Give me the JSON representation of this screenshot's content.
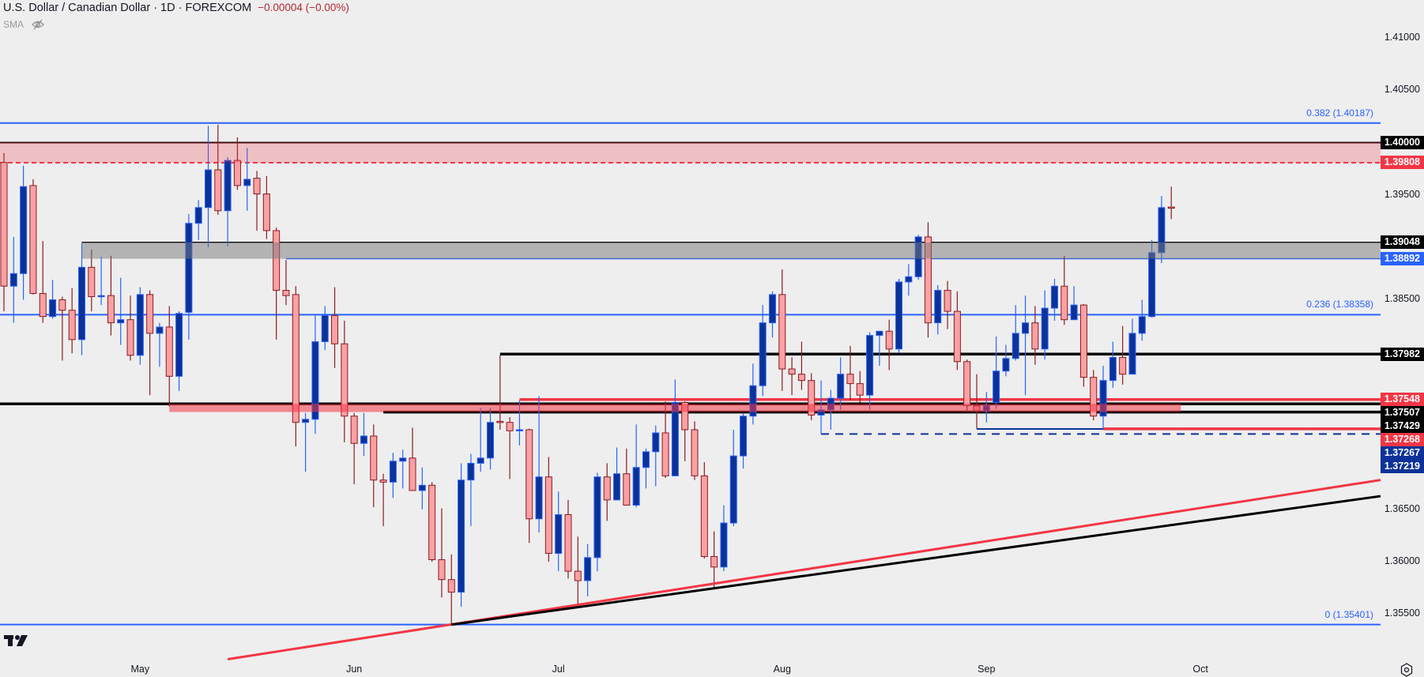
{
  "header": {
    "title": "U.S. Dollar / Canadian Dollar · 1D · FOREXCOM",
    "change": "−0.00004 (−0.00%)",
    "indicator": "SMA",
    "indicator_icon": "eye-slash-icon"
  },
  "footer": {
    "logo_icon": "tradingview-logo-icon",
    "settings_icon": "gear-icon"
  },
  "colors": {
    "background": "#eeeeee",
    "up_body": "#0b3298",
    "up_border": "#2962ff",
    "down_body": "#faa1a4",
    "down_border": "#8b1a21",
    "fib": "#2962ff",
    "red": "#f23645",
    "black": "#000000",
    "navy": "#0c3299",
    "change": "#b22833"
  },
  "chart_data": {
    "type": "candlestick",
    "ylim": [
      1.3507,
      1.4136
    ],
    "grid": false,
    "x_ticks": [
      {
        "label": "May",
        "date": "2025-05-01"
      },
      {
        "label": "Jun",
        "date": "2025-06-02"
      },
      {
        "label": "Jul",
        "date": "2025-07-01"
      },
      {
        "label": "Aug",
        "date": "2025-08-01"
      },
      {
        "label": "Sep",
        "date": "2025-09-01"
      },
      {
        "label": "Oct",
        "date": "2025-10-01"
      }
    ],
    "y_ticks": [
      "1.41000",
      "1.40500",
      "1.40000",
      "1.39500",
      "1.39000",
      "1.38500",
      "1.38000",
      "1.37500",
      "1.37000",
      "1.36500",
      "1.36000",
      "1.35500"
    ],
    "ohlc_columns": [
      "date",
      "open",
      "high",
      "low",
      "close"
    ],
    "ohlc": [
      [
        "2025-04-11",
        1.3981,
        1.399,
        1.3839,
        1.3863
      ],
      [
        "2025-04-14",
        1.3863,
        1.391,
        1.3828,
        1.3875
      ],
      [
        "2025-04-15",
        1.3875,
        1.3978,
        1.385,
        1.3958
      ],
      [
        "2025-04-16",
        1.3959,
        1.3965,
        1.3855,
        1.3856
      ],
      [
        "2025-04-17",
        1.3856,
        1.3906,
        1.3828,
        1.3834
      ],
      [
        "2025-04-18",
        1.3834,
        1.3869,
        1.3832,
        1.385
      ],
      [
        "2025-04-21",
        1.385,
        1.3853,
        1.3792,
        1.384
      ],
      [
        "2025-04-22",
        1.384,
        1.3861,
        1.3799,
        1.3812
      ],
      [
        "2025-04-23",
        1.3812,
        1.3904,
        1.3797,
        1.3881
      ],
      [
        "2025-04-24",
        1.3881,
        1.3898,
        1.3839,
        1.3853
      ],
      [
        "2025-04-25",
        1.3854,
        1.3891,
        1.3845,
        1.3854
      ],
      [
        "2025-04-28",
        1.3854,
        1.3892,
        1.3816,
        1.3828
      ],
      [
        "2025-04-29",
        1.3828,
        1.3871,
        1.3807,
        1.3831
      ],
      [
        "2025-04-30",
        1.3831,
        1.3854,
        1.3792,
        1.3797
      ],
      [
        "2025-05-01",
        1.3797,
        1.3862,
        1.3788,
        1.3855
      ],
      [
        "2025-05-02",
        1.3855,
        1.3859,
        1.3759,
        1.3818
      ],
      [
        "2025-05-05",
        1.3818,
        1.3828,
        1.3786,
        1.3824
      ],
      [
        "2025-05-06",
        1.3824,
        1.3844,
        1.3748,
        1.3777
      ],
      [
        "2025-05-07",
        1.3777,
        1.3839,
        1.3763,
        1.3837
      ],
      [
        "2025-05-08",
        1.3838,
        1.3932,
        1.3812,
        1.3923
      ],
      [
        "2025-05-09",
        1.3923,
        1.3945,
        1.3907,
        1.3938
      ],
      [
        "2025-05-12",
        1.3938,
        1.4016,
        1.39,
        1.3974
      ],
      [
        "2025-05-13",
        1.3974,
        1.4017,
        1.3931,
        1.3935
      ],
      [
        "2025-05-14",
        1.3935,
        1.3986,
        1.3901,
        1.3983
      ],
      [
        "2025-05-15",
        1.3983,
        1.4005,
        1.3955,
        1.3959
      ],
      [
        "2025-05-16",
        1.3959,
        1.3995,
        1.3935,
        1.3965
      ],
      [
        "2025-05-19",
        1.3966,
        1.3973,
        1.3916,
        1.3951
      ],
      [
        "2025-05-20",
        1.3951,
        1.3968,
        1.3908,
        1.3916
      ],
      [
        "2025-05-21",
        1.3916,
        1.3919,
        1.3812,
        1.3859
      ],
      [
        "2025-05-22",
        1.3859,
        1.3888,
        1.3845,
        1.3854
      ],
      [
        "2025-05-23",
        1.3855,
        1.3863,
        1.371,
        1.3733
      ],
      [
        "2025-05-26",
        1.3733,
        1.3742,
        1.3686,
        1.3736
      ],
      [
        "2025-05-27",
        1.3736,
        1.3835,
        1.3722,
        1.381
      ],
      [
        "2025-05-28",
        1.381,
        1.3844,
        1.3802,
        1.3835
      ],
      [
        "2025-05-29",
        1.3835,
        1.3862,
        1.3785,
        1.3808
      ],
      [
        "2025-05-30",
        1.3808,
        1.383,
        1.3714,
        1.3739
      ],
      [
        "2025-06-02",
        1.3739,
        1.3742,
        1.3674,
        1.3713
      ],
      [
        "2025-06-03",
        1.3713,
        1.3742,
        1.3701,
        1.372
      ],
      [
        "2025-06-04",
        1.372,
        1.3731,
        1.3652,
        1.3678
      ],
      [
        "2025-06-05",
        1.3678,
        1.3684,
        1.3634,
        1.3676
      ],
      [
        "2025-06-06",
        1.3676,
        1.3704,
        1.3661,
        1.3696
      ],
      [
        "2025-06-09",
        1.3696,
        1.3707,
        1.367,
        1.3699
      ],
      [
        "2025-06-10",
        1.3699,
        1.3728,
        1.3668,
        1.3668
      ],
      [
        "2025-06-11",
        1.3668,
        1.369,
        1.365,
        1.3673
      ],
      [
        "2025-06-12",
        1.3673,
        1.3676,
        1.36,
        1.3602
      ],
      [
        "2025-06-13",
        1.3602,
        1.3651,
        1.3566,
        1.3583
      ],
      [
        "2025-06-16",
        1.3583,
        1.3607,
        1.3539,
        1.3571
      ],
      [
        "2025-06-17",
        1.3571,
        1.3694,
        1.3557,
        1.3678
      ],
      [
        "2025-06-18",
        1.3678,
        1.3703,
        1.3634,
        1.3694
      ],
      [
        "2025-06-19",
        1.3694,
        1.3747,
        1.3686,
        1.3699
      ],
      [
        "2025-06-20",
        1.3699,
        1.3747,
        1.3688,
        1.3733
      ],
      [
        "2025-06-23",
        1.3734,
        1.3797,
        1.3726,
        1.3733
      ],
      [
        "2025-06-24",
        1.3733,
        1.3738,
        1.3679,
        1.3725
      ],
      [
        "2025-06-25",
        1.3726,
        1.3754,
        1.3711,
        1.3726
      ],
      [
        "2025-06-26",
        1.3726,
        1.3727,
        1.3618,
        1.3641
      ],
      [
        "2025-06-27",
        1.3641,
        1.3758,
        1.3628,
        1.3681
      ],
      [
        "2025-06-30",
        1.3681,
        1.37,
        1.36,
        1.3608
      ],
      [
        "2025-07-01",
        1.3608,
        1.3667,
        1.3591,
        1.3645
      ],
      [
        "2025-07-02",
        1.3645,
        1.3659,
        1.3584,
        1.3591
      ],
      [
        "2025-07-03",
        1.3591,
        1.3624,
        1.3558,
        1.3582
      ],
      [
        "2025-07-04",
        1.3582,
        1.3617,
        1.3567,
        1.3604
      ],
      [
        "2025-07-07",
        1.3604,
        1.3685,
        1.3591,
        1.3681
      ],
      [
        "2025-07-08",
        1.3681,
        1.3694,
        1.3639,
        1.3659
      ],
      [
        "2025-07-09",
        1.3659,
        1.3709,
        1.3659,
        1.3684
      ],
      [
        "2025-07-10",
        1.3684,
        1.3708,
        1.3654,
        1.3654
      ],
      [
        "2025-07-11",
        1.3654,
        1.3731,
        1.3652,
        1.369
      ],
      [
        "2025-07-14",
        1.369,
        1.3708,
        1.367,
        1.3705
      ],
      [
        "2025-07-15",
        1.3705,
        1.373,
        1.3672,
        1.3723
      ],
      [
        "2025-07-16",
        1.3723,
        1.3753,
        1.368,
        1.3682
      ],
      [
        "2025-07-17",
        1.3682,
        1.3774,
        1.3682,
        1.3752
      ],
      [
        "2025-07-18",
        1.3752,
        1.3753,
        1.3696,
        1.3726
      ],
      [
        "2025-07-21",
        1.3726,
        1.3734,
        1.3678,
        1.3682
      ],
      [
        "2025-07-22",
        1.3682,
        1.3695,
        1.3603,
        1.3605
      ],
      [
        "2025-07-23",
        1.3605,
        1.3629,
        1.3575,
        1.3595
      ],
      [
        "2025-07-24",
        1.3595,
        1.3654,
        1.3591,
        1.3637
      ],
      [
        "2025-07-25",
        1.3637,
        1.3726,
        1.3634,
        1.3701
      ],
      [
        "2025-07-28",
        1.3701,
        1.3742,
        1.3689,
        1.3739
      ],
      [
        "2025-07-29",
        1.3739,
        1.3789,
        1.3731,
        1.3768
      ],
      [
        "2025-07-30",
        1.3768,
        1.3845,
        1.3758,
        1.3828
      ],
      [
        "2025-07-31",
        1.3828,
        1.3858,
        1.3814,
        1.3855
      ],
      [
        "2025-08-01",
        1.3855,
        1.3879,
        1.3763,
        1.3784
      ],
      [
        "2025-08-04",
        1.3784,
        1.3795,
        1.3759,
        1.3779
      ],
      [
        "2025-08-05",
        1.3779,
        1.381,
        1.3764,
        1.3773
      ],
      [
        "2025-08-06",
        1.3773,
        1.378,
        1.3735,
        1.374
      ],
      [
        "2025-08-07",
        1.374,
        1.3773,
        1.3722,
        1.3745
      ],
      [
        "2025-08-08",
        1.3745,
        1.3764,
        1.3726,
        1.3756
      ],
      [
        "2025-08-11",
        1.3756,
        1.3795,
        1.3745,
        1.3779
      ],
      [
        "2025-08-12",
        1.3779,
        1.3806,
        1.3754,
        1.377
      ],
      [
        "2025-08-13",
        1.377,
        1.3782,
        1.3752,
        1.3759
      ],
      [
        "2025-08-14",
        1.3759,
        1.3819,
        1.3745,
        1.3816
      ],
      [
        "2025-08-15",
        1.3816,
        1.382,
        1.3787,
        1.382
      ],
      [
        "2025-08-18",
        1.382,
        1.3831,
        1.3783,
        1.3803
      ],
      [
        "2025-08-19",
        1.3803,
        1.387,
        1.3799,
        1.3867
      ],
      [
        "2025-08-20",
        1.3867,
        1.3884,
        1.3854,
        1.3872
      ],
      [
        "2025-08-21",
        1.3872,
        1.3912,
        1.3869,
        1.391
      ],
      [
        "2025-08-22",
        1.391,
        1.3924,
        1.3814,
        1.3828
      ],
      [
        "2025-08-25",
        1.3828,
        1.3864,
        1.3817,
        1.3859
      ],
      [
        "2025-08-26",
        1.3859,
        1.3868,
        1.3822,
        1.3839
      ],
      [
        "2025-08-27",
        1.3839,
        1.3858,
        1.3783,
        1.3791
      ],
      [
        "2025-08-28",
        1.3791,
        1.3793,
        1.3743,
        1.3749
      ],
      [
        "2025-08-29",
        1.3749,
        1.3779,
        1.3727,
        1.3744
      ],
      [
        "2025-09-01",
        1.3744,
        1.3762,
        1.3733,
        1.3749
      ],
      [
        "2025-09-02",
        1.3752,
        1.3815,
        1.3746,
        1.3782
      ],
      [
        "2025-09-03",
        1.3782,
        1.3807,
        1.3777,
        1.3794
      ],
      [
        "2025-09-04",
        1.3794,
        1.3845,
        1.3792,
        1.3818
      ],
      [
        "2025-09-05",
        1.3818,
        1.3854,
        1.3759,
        1.3828
      ],
      [
        "2025-09-08",
        1.3828,
        1.3844,
        1.3788,
        1.3803
      ],
      [
        "2025-09-09",
        1.3803,
        1.3859,
        1.3793,
        1.3842
      ],
      [
        "2025-09-10",
        1.3842,
        1.387,
        1.383,
        1.3863
      ],
      [
        "2025-09-11",
        1.3863,
        1.3892,
        1.3826,
        1.3831
      ],
      [
        "2025-09-12",
        1.3831,
        1.3863,
        1.3831,
        1.3845
      ],
      [
        "2025-09-15",
        1.3845,
        1.3846,
        1.3767,
        1.3776
      ],
      [
        "2025-09-16",
        1.3776,
        1.3783,
        1.3735,
        1.3739
      ],
      [
        "2025-09-17",
        1.3739,
        1.3787,
        1.3727,
        1.3773
      ],
      [
        "2025-09-18",
        1.3773,
        1.381,
        1.3766,
        1.3795
      ],
      [
        "2025-09-19",
        1.3795,
        1.3825,
        1.3769,
        1.3779
      ],
      [
        "2025-09-22",
        1.3779,
        1.3832,
        1.3779,
        1.3818
      ],
      [
        "2025-09-23",
        1.3818,
        1.385,
        1.3811,
        1.3834
      ],
      [
        "2025-09-24",
        1.3834,
        1.3907,
        1.3833,
        1.3895
      ],
      [
        "2025-09-25",
        1.3895,
        1.3949,
        1.3885,
        1.3938
      ],
      [
        "2025-09-26",
        1.39385,
        1.3958,
        1.3927,
        1.39381
      ]
    ],
    "fib_levels": [
      {
        "ratio": 0.382,
        "price": 1.40187,
        "label": "0.382 (1.40187)"
      },
      {
        "ratio": 0.236,
        "price": 1.38358,
        "label": "0.236 (1.38358)"
      },
      {
        "ratio": 0,
        "price": 1.35401,
        "label": "0 (1.35401)"
      }
    ],
    "zones": [
      {
        "low": 1.39808,
        "high": 1.4,
        "start": "full",
        "color": "#f23645",
        "opacity": 0.25
      },
      {
        "low": 1.38892,
        "high": 1.39048,
        "start": "2025-04-23",
        "color": "#787878",
        "opacity": 0.5
      },
      {
        "low": 1.37429,
        "high": 1.37507,
        "start": "2025-05-06",
        "end": "2025-09-29",
        "color": "#f23645",
        "opacity": 0.55
      }
    ],
    "levels": [
      {
        "price": 1.4,
        "start": "full",
        "color": "#2a0509",
        "style": "solid"
      },
      {
        "price": 1.39808,
        "start": "full",
        "color": "#f23645",
        "style": "dashed"
      },
      {
        "price": 1.39048,
        "start": "2025-04-23",
        "color": "#000000",
        "style": "thin"
      },
      {
        "price": 1.38892,
        "start": "2025-05-22",
        "color": "#2962ff",
        "style": "thin"
      },
      {
        "price": 1.37982,
        "start": "2025-06-23",
        "color": "#000000",
        "style": "thick"
      },
      {
        "price": 1.37548,
        "start": "2025-06-25",
        "color": "#f23645",
        "style": "thick"
      },
      {
        "price": 1.37507,
        "start": "full",
        "color": "#000000",
        "style": "thick"
      },
      {
        "price": 1.37429,
        "start": "2025-06-05",
        "color": "#000000",
        "style": "thick"
      },
      {
        "price": 1.37267,
        "start": "2025-08-29",
        "color": "#0c3299",
        "style": "solid"
      },
      {
        "price": 1.37268,
        "start": "2025-09-17",
        "color": "#f23645",
        "style": "thick"
      },
      {
        "price": 1.37219,
        "start": "2025-08-07",
        "color": "#0c3299",
        "style": "dashed"
      }
    ],
    "trendlines": [
      {
        "from": [
          "2025-05-14",
          1.3507
        ],
        "to": [
          "2025-09-26",
          1.3647
        ],
        "extend": "right",
        "color": "#f23645"
      },
      {
        "from": [
          "2025-06-16",
          1.354
        ],
        "to": [
          "2025-09-26",
          1.3635
        ],
        "extend": "right",
        "color": "#000000"
      }
    ],
    "price_tags": [
      {
        "label": "1.40000",
        "price": 1.4,
        "color": "#000000"
      },
      {
        "label": "1.39808",
        "price": 1.39808,
        "color": "#f23645"
      },
      {
        "label": "1.39048",
        "price": 1.39048,
        "color": "#000000"
      },
      {
        "label": "1.38892",
        "price": 1.38892,
        "color": "#2962ff"
      },
      {
        "label": "1.37982",
        "price": 1.37982,
        "color": "#000000"
      },
      {
        "label": "1.37548",
        "price": 1.37548,
        "color": "#f23645"
      },
      {
        "label": "1.37507",
        "price": 1.37507,
        "color": "#000000"
      },
      {
        "label": "1.37429",
        "price": 1.37429,
        "color": "#000000"
      },
      {
        "label": "1.37268",
        "price": 1.37268,
        "color": "#f23645"
      },
      {
        "label": "1.37267",
        "price": 1.37267,
        "color": "#0c3299"
      },
      {
        "label": "1.37219",
        "price": 1.37219,
        "color": "#0c3299"
      }
    ]
  }
}
